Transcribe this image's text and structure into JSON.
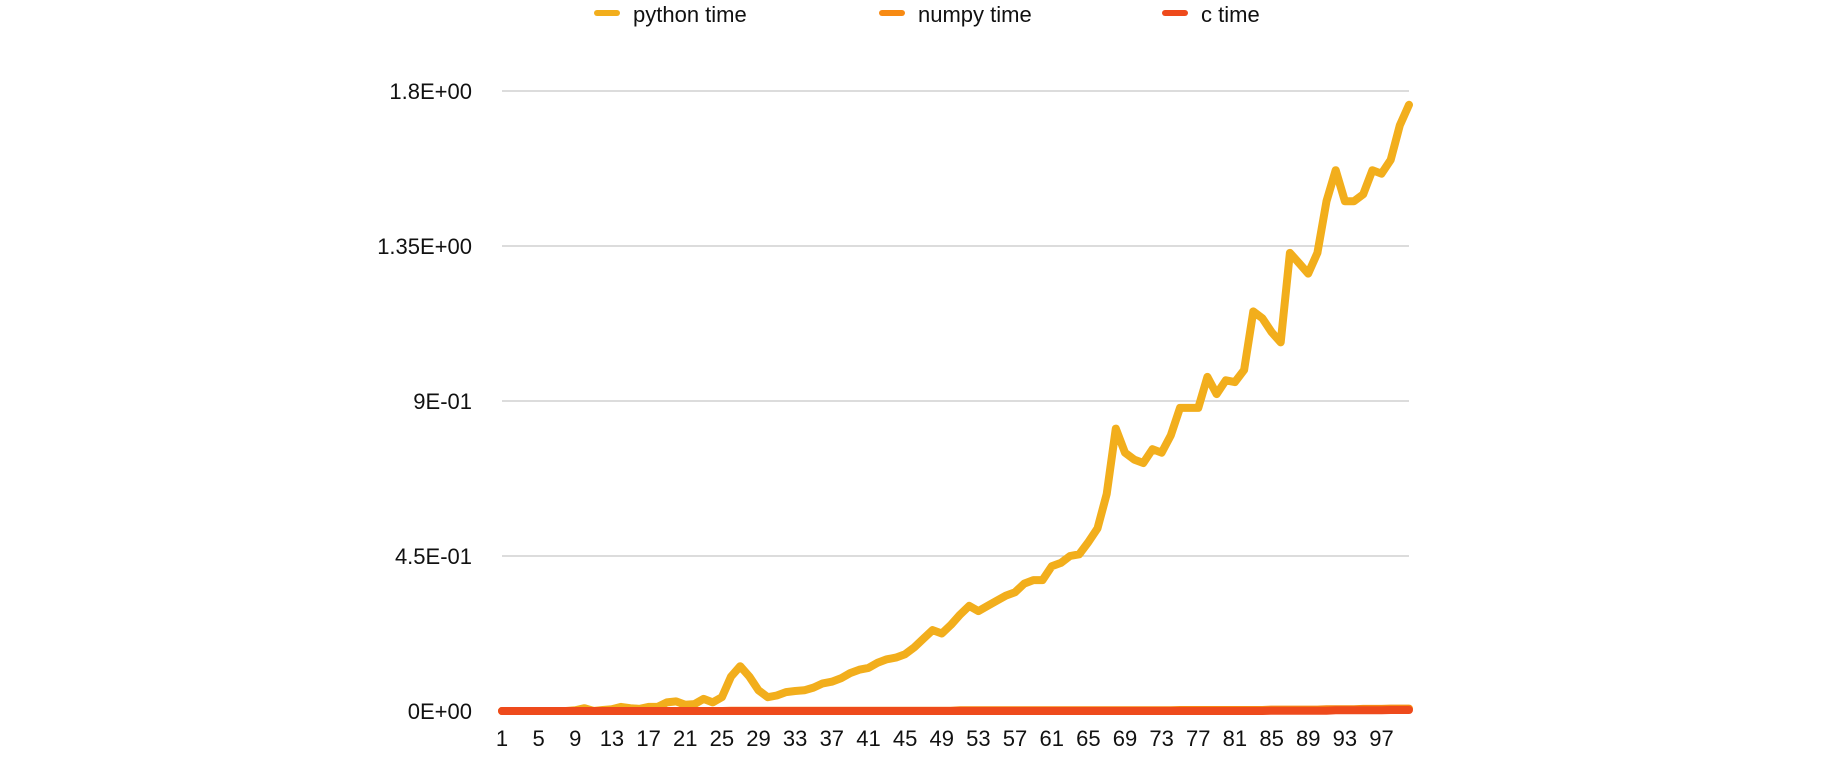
{
  "chart_data": {
    "type": "line",
    "title": "",
    "xlabel": "",
    "ylabel": "",
    "x_start": 1,
    "x_end": 100,
    "x_tick_labels": [
      "1",
      "5",
      "9",
      "13",
      "17",
      "21",
      "25",
      "29",
      "33",
      "37",
      "41",
      "45",
      "49",
      "53",
      "57",
      "61",
      "65",
      "69",
      "73",
      "77",
      "81",
      "85",
      "89",
      "93",
      "97"
    ],
    "y_tick_labels": [
      "0E+00",
      "4.5E-01",
      "9E-01",
      "1.35E+00",
      "1.8E+00"
    ],
    "ylim": [
      0,
      1.8
    ],
    "grid": "horizontal",
    "legend_position": "top",
    "series": [
      {
        "name": "python time",
        "color": "#F2AE1C",
        "values": [
          0.0,
          0.0,
          0.0,
          0.0,
          0.0,
          0.0,
          0.0,
          0.0,
          0.002,
          0.008,
          0.0,
          0.003,
          0.005,
          0.012,
          0.008,
          0.006,
          0.012,
          0.012,
          0.025,
          0.028,
          0.018,
          0.02,
          0.035,
          0.025,
          0.04,
          0.1,
          0.13,
          0.1,
          0.06,
          0.04,
          0.045,
          0.055,
          0.058,
          0.06,
          0.068,
          0.08,
          0.085,
          0.095,
          0.11,
          0.12,
          0.125,
          0.14,
          0.15,
          0.155,
          0.165,
          0.185,
          0.21,
          0.235,
          0.225,
          0.25,
          0.28,
          0.305,
          0.29,
          0.305,
          0.32,
          0.335,
          0.345,
          0.37,
          0.38,
          0.38,
          0.42,
          0.43,
          0.45,
          0.455,
          0.49,
          0.53,
          0.63,
          0.82,
          0.75,
          0.73,
          0.72,
          0.76,
          0.75,
          0.8,
          0.88,
          0.88,
          0.88,
          0.97,
          0.92,
          0.96,
          0.955,
          0.99,
          1.16,
          1.14,
          1.1,
          1.07,
          1.33,
          1.3,
          1.27,
          1.33,
          1.48,
          1.57,
          1.48,
          1.48,
          1.5,
          1.57,
          1.56,
          1.6,
          1.7,
          1.76
        ]
      },
      {
        "name": "numpy time",
        "color": "#F78A13",
        "values": [
          0.0,
          0.0,
          0.0,
          0.0,
          0.0,
          0.0,
          0.0,
          0.0,
          0.0,
          0.0,
          0.0,
          0.0,
          0.0,
          0.0,
          0.0,
          0.0,
          0.0,
          0.0,
          0.0,
          0.0,
          0.0,
          0.0,
          0.0,
          0.0,
          0.0,
          0.001,
          0.001,
          0.001,
          0.001,
          0.001,
          0.001,
          0.001,
          0.001,
          0.001,
          0.001,
          0.001,
          0.001,
          0.001,
          0.001,
          0.001,
          0.001,
          0.001,
          0.001,
          0.001,
          0.001,
          0.001,
          0.001,
          0.001,
          0.001,
          0.001,
          0.002,
          0.002,
          0.002,
          0.002,
          0.002,
          0.002,
          0.002,
          0.002,
          0.002,
          0.002,
          0.002,
          0.002,
          0.002,
          0.002,
          0.002,
          0.002,
          0.002,
          0.002,
          0.002,
          0.002,
          0.002,
          0.002,
          0.002,
          0.002,
          0.003,
          0.003,
          0.003,
          0.003,
          0.003,
          0.003,
          0.003,
          0.003,
          0.003,
          0.003,
          0.004,
          0.004,
          0.004,
          0.004,
          0.004,
          0.004,
          0.005,
          0.005,
          0.005,
          0.005,
          0.006,
          0.006,
          0.006,
          0.007,
          0.007,
          0.007
        ]
      },
      {
        "name": "c time",
        "color": "#EE4A1C",
        "values": [
          0.0,
          0.0,
          0.0,
          0.0,
          0.0,
          0.0,
          0.0,
          0.0,
          0.0,
          0.0,
          0.0,
          0.0,
          0.0,
          0.0,
          0.0,
          0.0,
          0.0,
          0.0,
          0.0,
          0.0,
          0.0,
          0.0,
          0.0,
          0.0,
          0.0,
          0.0,
          0.0,
          0.0,
          0.0,
          0.0,
          0.0,
          0.0,
          0.0,
          0.0,
          0.0,
          0.0,
          0.0,
          0.0,
          0.0,
          0.0,
          0.0,
          0.0,
          0.0,
          0.0,
          0.0,
          0.0,
          0.0,
          0.0,
          0.0,
          0.0,
          0.0,
          0.0,
          0.0,
          0.0,
          0.0,
          0.0,
          0.0,
          0.0,
          0.0,
          0.0,
          0.0,
          0.0,
          0.0,
          0.0,
          0.0,
          0.0,
          0.0,
          0.0,
          0.0,
          0.0,
          0.0,
          0.0,
          0.0,
          0.0,
          0.0,
          0.0,
          0.0,
          0.0,
          0.0,
          0.0,
          0.0,
          0.0,
          0.0,
          0.0,
          0.001,
          0.001,
          0.001,
          0.001,
          0.001,
          0.001,
          0.001,
          0.002,
          0.002,
          0.002,
          0.002,
          0.002,
          0.002,
          0.003,
          0.003,
          0.003
        ]
      }
    ]
  }
}
